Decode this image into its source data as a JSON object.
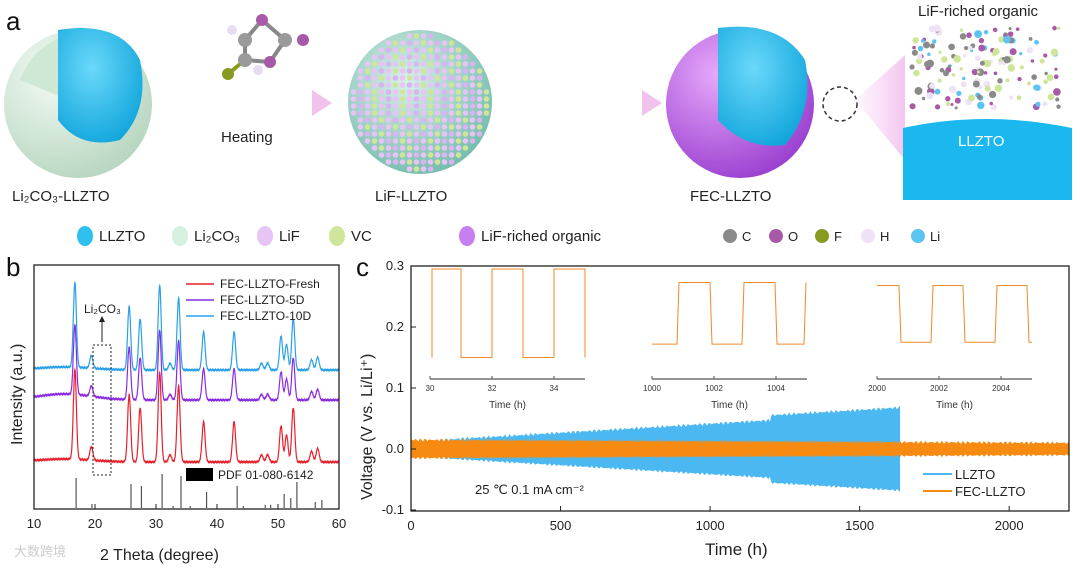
{
  "schematic": {
    "panel_label": "a",
    "sphere1_label": "Li₂CO₃-LLZTO",
    "arrow_label": "Heating",
    "sphere2_label": "LiF-LLZTO",
    "sphere3_label": "FEC-LLZTO",
    "zoom_title": "LiF-riched organic",
    "block_label": "LLZTO",
    "legend": [
      {
        "label": "LLZTO",
        "color": "#2ec0ee"
      },
      {
        "label": "Li₂CO₃",
        "color": "#d8f0e0"
      },
      {
        "label": "LiF",
        "color": "#e6c4f4"
      },
      {
        "label": "VC",
        "color": "#cfe69a"
      },
      {
        "label": "LiF-riched organic",
        "color": "#c77ff0"
      }
    ],
    "atoms": [
      {
        "label": "C",
        "color": "#8a8a8a"
      },
      {
        "label": "O",
        "color": "#a85aa8"
      },
      {
        "label": "F",
        "color": "#8a9a20"
      },
      {
        "label": "H",
        "color": "#eee2f5"
      },
      {
        "label": "Li",
        "color": "#5cc4f2"
      }
    ]
  },
  "chart_data": [
    {
      "panel_label": "b",
      "type": "line",
      "xlabel": "2 Theta (degree)",
      "ylabel": "Intensity (a.u.)",
      "xlim": [
        10,
        60
      ],
      "xticks": [
        "10",
        "20",
        "30",
        "40",
        "50",
        "60"
      ],
      "annotation": "Li₂CO₃",
      "reference_label": "PDF 01-080-6142",
      "series": [
        {
          "name": "FEC-LLZTO-Fresh",
          "color": "#e8202a"
        },
        {
          "name": "FEC-LLZTO-5D",
          "color": "#8a2be2"
        },
        {
          "name": "FEC-LLZTO-10D",
          "color": "#2aa0e8"
        }
      ],
      "peaks_2theta": [
        16.7,
        19.4,
        25.6,
        27.4,
        30.6,
        32.3,
        33.7,
        37.8,
        42.8,
        47.3,
        48.3,
        50.5,
        51.4,
        52.5,
        55.5,
        56.5
      ],
      "peak_rel_intensity": [
        1.0,
        0.15,
        0.75,
        0.6,
        1.0,
        0.08,
        0.85,
        0.45,
        0.45,
        0.08,
        0.08,
        0.4,
        0.3,
        0.6,
        0.12,
        0.15
      ],
      "reference_sticks_2theta": [
        16.9,
        19.5,
        25.9,
        27.6,
        31.0,
        32.8,
        34.1,
        35.6,
        38.3,
        43.3,
        44.3,
        47.9,
        48.8,
        51.0,
        52.1,
        53.1,
        56.1,
        57.2
      ],
      "reference_stick_rel": [
        0.75,
        0.1,
        0.6,
        0.55,
        0.85,
        0.05,
        0.8,
        0.05,
        0.4,
        0.55,
        0.05,
        0.08,
        0.08,
        0.35,
        0.25,
        0.65,
        0.15,
        0.2
      ]
    },
    {
      "panel_label": "c",
      "type": "line",
      "xlabel": "Time (h)",
      "ylabel": "Voltage (V vs. Li/Li⁺)",
      "xlim": [
        0,
        2200
      ],
      "ylim": [
        -0.1,
        0.3
      ],
      "xticks": [
        "0",
        "500",
        "1000",
        "1500",
        "2000"
      ],
      "yticks": [
        "-0.1",
        "0.0",
        "0.1",
        "0.2",
        "0.3"
      ],
      "annotation": "25 ℃ 0.1 mA cm⁻²",
      "series": [
        {
          "name": "LLZTO",
          "color": "#4cb8f2",
          "end_time": 1635,
          "amplitude_start": 0.012,
          "amplitude_end": 0.06
        },
        {
          "name": "FEC-LLZTO",
          "color": "#f78a10",
          "end_time": 2200,
          "amplitude_start": 0.015,
          "amplitude_end": 0.01
        }
      ],
      "insets": [
        {
          "xticks": [
            "30",
            "32",
            "34"
          ],
          "xlabel": "Time (h)",
          "high": 0.295,
          "low": 0.15
        },
        {
          "xticks": [
            "1000",
            "1002",
            "1004"
          ],
          "xlabel": "Time (h)",
          "high": 0.273,
          "low": 0.172
        },
        {
          "xticks": [
            "2000",
            "2002",
            "2004"
          ],
          "xlabel": "Time (h)",
          "high": 0.268,
          "low": 0.175
        }
      ]
    }
  ],
  "watermark": "大数跨境"
}
